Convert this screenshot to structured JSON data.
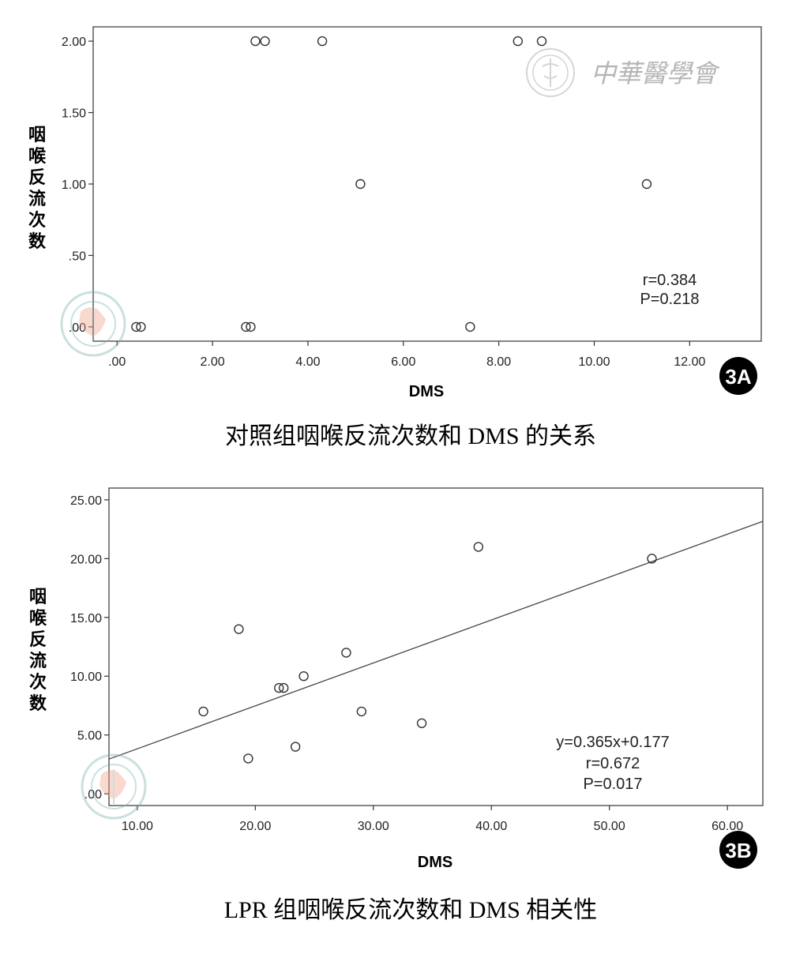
{
  "watermark_text": "中華醫學會",
  "chart_data": [
    {
      "type": "scatter",
      "panel_label": "3A",
      "caption": "对照组咽喉反流次数和 DMS 的关系",
      "xlabel": "DMS",
      "ylabel": "咽喉反流次数",
      "xlim": [
        -0.5,
        13.5
      ],
      "ylim": [
        -0.1,
        2.1
      ],
      "xticks": [
        0,
        2,
        4,
        6,
        8,
        10,
        12
      ],
      "xtick_labels": [
        ".00",
        "2.00",
        "4.00",
        "6.00",
        "8.00",
        "10.00",
        "12.00"
      ],
      "yticks": [
        0,
        0.5,
        1,
        1.5,
        2
      ],
      "ytick_labels": [
        ".00",
        ".50",
        "1.00",
        "1.50",
        "2.00"
      ],
      "points": [
        [
          0.4,
          0
        ],
        [
          0.5,
          0
        ],
        [
          2.7,
          0
        ],
        [
          2.8,
          0
        ],
        [
          2.9,
          2
        ],
        [
          3.1,
          2
        ],
        [
          4.3,
          2
        ],
        [
          5.1,
          1
        ],
        [
          7.4,
          0
        ],
        [
          8.4,
          2
        ],
        [
          8.9,
          2
        ],
        [
          11.1,
          1
        ]
      ],
      "annotations": [
        "r=0.384",
        "P=0.218"
      ],
      "grid": false
    },
    {
      "type": "scatter",
      "panel_label": "3B",
      "caption": "LPR 组咽喉反流次数和 DMS 相关性",
      "xlabel": "DMS",
      "ylabel": "咽喉反流次数",
      "xlim": [
        7.6,
        63
      ],
      "ylim": [
        -1,
        26
      ],
      "xticks": [
        10,
        20,
        30,
        40,
        50,
        60
      ],
      "xtick_labels": [
        "10.00",
        "20.00",
        "30.00",
        "40.00",
        "50.00",
        "60.00"
      ],
      "yticks": [
        0,
        5,
        10,
        15,
        20,
        25
      ],
      "ytick_labels": [
        ".00",
        "5.00",
        "10.00",
        "15.00",
        "20.00",
        "25.00"
      ],
      "points": [
        [
          15.6,
          7
        ],
        [
          18.6,
          14
        ],
        [
          19.4,
          3
        ],
        [
          22,
          9
        ],
        [
          22.4,
          9
        ],
        [
          23.4,
          4
        ],
        [
          24.1,
          10
        ],
        [
          27.7,
          12
        ],
        [
          29,
          7
        ],
        [
          34.1,
          6
        ],
        [
          38.9,
          21
        ],
        [
          53.6,
          20
        ]
      ],
      "fit_line": {
        "slope": 0.365,
        "intercept": 0.177
      },
      "annotations": [
        "y=0.365x+0.177",
        "r=0.672",
        "P=0.017"
      ],
      "grid": false
    }
  ]
}
